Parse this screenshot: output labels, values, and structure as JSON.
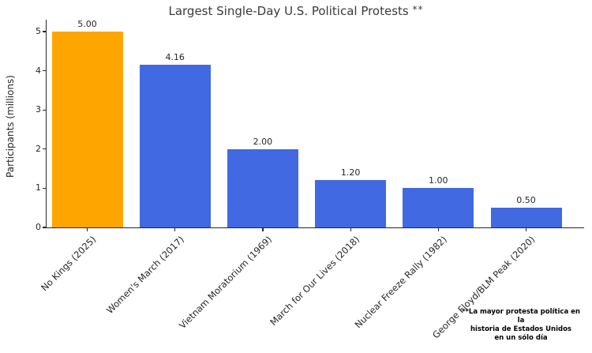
{
  "page": {
    "title": "Largest Single-Day U.S. Political Protests",
    "title_marker": "**"
  },
  "chart_data": {
    "type": "bar",
    "title": "Largest Single-Day U.S. Political Protests **",
    "categories": [
      "No Kings (2025)",
      "Women's March (2017)",
      "Vietnam Moratorium (1969)",
      "March for Our Lives (2018)",
      "Nuclear Freeze Rally (1982)",
      "George Floyd/BLM Peak (2020)"
    ],
    "values": [
      5.0,
      4.16,
      2.0,
      1.2,
      1.0,
      0.5
    ],
    "value_labels": [
      "5.00",
      "4.16",
      "2.00",
      "1.20",
      "1.00",
      "0.50"
    ],
    "bar_colors": [
      "#FFA500",
      "#4169E1",
      "#4169E1",
      "#4169E1",
      "#4169E1",
      "#4169E1"
    ],
    "highlight_color": "#FFA500",
    "base_color": "#4169E1",
    "xlabel": "",
    "ylabel": "Participants (millions)",
    "ylim": [
      0,
      5.3
    ],
    "yticks": [
      0,
      1,
      2,
      3,
      4,
      5
    ],
    "grid": false,
    "legend": null,
    "annotation": {
      "lines": [
        "**La mayor protesta política en la",
        "historia de Estados Unidos",
        "en un sólo día"
      ]
    }
  },
  "colors": {
    "text": "#262626",
    "spine": "#262626",
    "background": "#ffffff"
  }
}
